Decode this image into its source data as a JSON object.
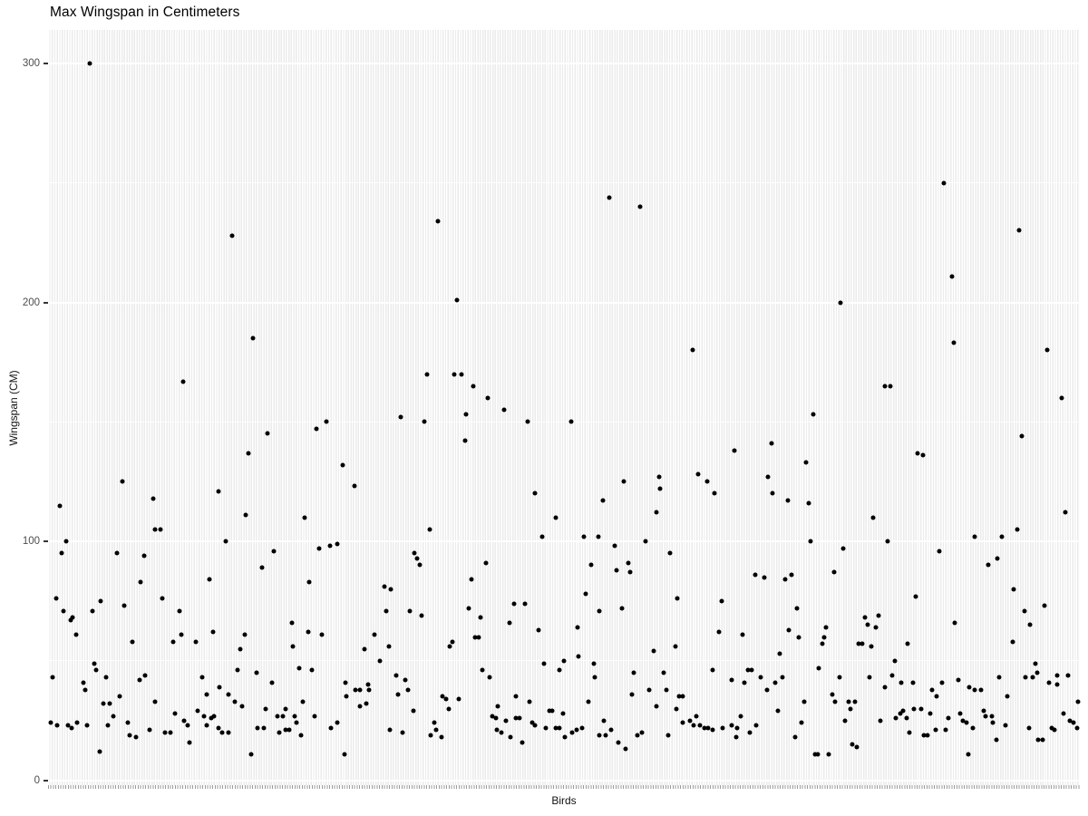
{
  "colors": {
    "page_background": "#FFFFFF",
    "panel_background": "#EBEBEB",
    "gridline": "#FFFFFF",
    "point": "#000000",
    "axis_text": "#4D4D4D",
    "title_text": "#000000",
    "tick_mark": "#333333"
  },
  "chart_data": {
    "type": "scatter",
    "title": "Max Wingspan in Centimeters",
    "xlabel": "Birds",
    "ylabel": "Wingspan (CM)",
    "x_axis_type": "categorical, one unlabeled column per bird (~400 birds)",
    "y_ticks": [
      0,
      100,
      200,
      300
    ],
    "y_minor_gridlines": [
      50,
      150,
      250
    ],
    "ylim": [
      -2,
      314
    ],
    "grid": "grey panel, vertical white stripe per category, horizontal white major/minor lines",
    "legend": "none",
    "points_format": "[x position as fraction 0-1 along Birds axis, max wingspan in cm]",
    "points": [
      [
        0.04,
        300
      ],
      [
        0.178,
        228
      ],
      [
        0.199,
        185
      ],
      [
        0.131,
        167
      ],
      [
        0.544,
        244
      ],
      [
        0.574,
        240
      ],
      [
        0.378,
        234
      ],
      [
        0.396,
        201
      ],
      [
        0.625,
        180
      ],
      [
        0.367,
        170
      ],
      [
        0.394,
        170
      ],
      [
        0.401,
        170
      ],
      [
        0.412,
        165
      ],
      [
        0.426,
        160
      ],
      [
        0.442,
        155
      ],
      [
        0.868,
        250
      ],
      [
        0.941,
        230
      ],
      [
        0.876,
        211
      ],
      [
        0.768,
        200
      ],
      [
        0.878,
        183
      ],
      [
        0.968,
        180
      ],
      [
        0.811,
        165
      ],
      [
        0.816,
        165
      ],
      [
        0.982,
        160
      ],
      [
        0.27,
        150
      ],
      [
        0.26,
        147
      ],
      [
        0.213,
        145
      ],
      [
        0.194,
        137
      ],
      [
        0.286,
        132
      ],
      [
        0.072,
        125
      ],
      [
        0.297,
        123
      ],
      [
        0.165,
        121
      ],
      [
        0.102,
        118
      ],
      [
        0.011,
        115
      ],
      [
        0.192,
        111
      ],
      [
        0.249,
        110
      ],
      [
        0.104,
        105
      ],
      [
        0.109,
        105
      ],
      [
        0.018,
        100
      ],
      [
        0.172,
        100
      ],
      [
        0.263,
        97
      ],
      [
        0.273,
        98
      ],
      [
        0.28,
        99
      ],
      [
        0.013,
        95
      ],
      [
        0.067,
        95
      ],
      [
        0.093,
        94
      ],
      [
        0.219,
        96
      ],
      [
        0.207,
        89
      ],
      [
        0.09,
        83
      ],
      [
        0.156,
        84
      ],
      [
        0.253,
        83
      ],
      [
        0.326,
        81
      ],
      [
        0.332,
        80
      ],
      [
        0.008,
        76
      ],
      [
        0.051,
        75
      ],
      [
        0.111,
        76
      ],
      [
        0.074,
        73
      ],
      [
        0.015,
        71
      ],
      [
        0.043,
        71
      ],
      [
        0.127,
        71
      ],
      [
        0.024,
        68
      ],
      [
        0.328,
        71
      ],
      [
        0.342,
        152
      ],
      [
        0.405,
        153
      ],
      [
        0.365,
        150
      ],
      [
        0.465,
        150
      ],
      [
        0.507,
        150
      ],
      [
        0.404,
        142
      ],
      [
        0.665,
        138
      ],
      [
        0.558,
        125
      ],
      [
        0.592,
        127
      ],
      [
        0.63,
        128
      ],
      [
        0.639,
        125
      ],
      [
        0.593,
        122
      ],
      [
        0.646,
        120
      ],
      [
        0.472,
        120
      ],
      [
        0.538,
        117
      ],
      [
        0.59,
        112
      ],
      [
        0.492,
        110
      ],
      [
        0.37,
        105
      ],
      [
        0.479,
        102
      ],
      [
        0.519,
        102
      ],
      [
        0.533,
        102
      ],
      [
        0.579,
        100
      ],
      [
        0.549,
        98
      ],
      [
        0.603,
        95
      ],
      [
        0.355,
        95
      ],
      [
        0.358,
        93
      ],
      [
        0.36,
        90
      ],
      [
        0.424,
        91
      ],
      [
        0.526,
        90
      ],
      [
        0.551,
        88
      ],
      [
        0.562,
        91
      ],
      [
        0.564,
        87
      ],
      [
        0.41,
        84
      ],
      [
        0.521,
        78
      ],
      [
        0.61,
        76
      ],
      [
        0.653,
        75
      ],
      [
        0.452,
        74
      ],
      [
        0.462,
        74
      ],
      [
        0.408,
        72
      ],
      [
        0.351,
        71
      ],
      [
        0.362,
        69
      ],
      [
        0.534,
        71
      ],
      [
        0.556,
        72
      ],
      [
        0.419,
        68
      ],
      [
        0.742,
        153
      ],
      [
        0.944,
        144
      ],
      [
        0.701,
        141
      ],
      [
        0.843,
        137
      ],
      [
        0.848,
        136
      ],
      [
        0.735,
        133
      ],
      [
        0.698,
        127
      ],
      [
        0.702,
        120
      ],
      [
        0.717,
        117
      ],
      [
        0.737,
        116
      ],
      [
        0.8,
        110
      ],
      [
        0.986,
        112
      ],
      [
        0.939,
        105
      ],
      [
        0.898,
        102
      ],
      [
        0.924,
        102
      ],
      [
        0.739,
        100
      ],
      [
        0.814,
        100
      ],
      [
        0.771,
        97
      ],
      [
        0.864,
        96
      ],
      [
        0.92,
        93
      ],
      [
        0.911,
        90
      ],
      [
        0.685,
        86
      ],
      [
        0.694,
        85
      ],
      [
        0.721,
        86
      ],
      [
        0.714,
        84
      ],
      [
        0.762,
        87
      ],
      [
        0.841,
        77
      ],
      [
        0.936,
        80
      ],
      [
        0.726,
        72
      ],
      [
        0.792,
        68
      ],
      [
        0.805,
        69
      ],
      [
        0.946,
        71
      ],
      [
        0.966,
        73
      ],
      [
        0.022,
        67
      ],
      [
        0.027,
        61
      ],
      [
        0.082,
        58
      ],
      [
        0.121,
        58
      ],
      [
        0.129,
        61
      ],
      [
        0.143,
        58
      ],
      [
        0.16,
        62
      ],
      [
        0.045,
        49
      ],
      [
        0.047,
        46
      ],
      [
        0.004,
        43
      ],
      [
        0.056,
        43
      ],
      [
        0.089,
        42
      ],
      [
        0.094,
        44
      ],
      [
        0.034,
        41
      ],
      [
        0.036,
        38
      ],
      [
        0.149,
        43
      ],
      [
        0.154,
        36
      ],
      [
        0.166,
        39
      ],
      [
        0.054,
        32
      ],
      [
        0.06,
        32
      ],
      [
        0.069,
        35
      ],
      [
        0.063,
        27
      ],
      [
        0.104,
        33
      ],
      [
        0.123,
        28
      ],
      [
        0.145,
        29
      ],
      [
        0.151,
        27
      ],
      [
        0.161,
        27
      ],
      [
        0.003,
        24
      ],
      [
        0.009,
        23
      ],
      [
        0.019,
        23
      ],
      [
        0.023,
        22
      ],
      [
        0.028,
        24
      ],
      [
        0.038,
        23
      ],
      [
        0.058,
        23
      ],
      [
        0.077,
        24
      ],
      [
        0.079,
        19
      ],
      [
        0.085,
        18
      ],
      [
        0.098,
        21
      ],
      [
        0.113,
        20
      ],
      [
        0.119,
        20
      ],
      [
        0.132,
        25
      ],
      [
        0.135,
        23
      ],
      [
        0.154,
        23
      ],
      [
        0.158,
        26
      ],
      [
        0.165,
        22
      ],
      [
        0.137,
        16
      ],
      [
        0.05,
        12
      ],
      [
        0.236,
        66
      ],
      [
        0.191,
        61
      ],
      [
        0.252,
        62
      ],
      [
        0.265,
        61
      ],
      [
        0.316,
        61
      ],
      [
        0.186,
        55
      ],
      [
        0.237,
        56
      ],
      [
        0.307,
        55
      ],
      [
        0.33,
        56
      ],
      [
        0.322,
        50
      ],
      [
        0.184,
        46
      ],
      [
        0.202,
        45
      ],
      [
        0.243,
        47
      ],
      [
        0.256,
        46
      ],
      [
        0.217,
        41
      ],
      [
        0.175,
        36
      ],
      [
        0.181,
        33
      ],
      [
        0.188,
        31
      ],
      [
        0.288,
        41
      ],
      [
        0.298,
        38
      ],
      [
        0.302,
        38
      ],
      [
        0.289,
        35
      ],
      [
        0.31,
        40
      ],
      [
        0.311,
        38
      ],
      [
        0.308,
        32
      ],
      [
        0.302,
        31
      ],
      [
        0.247,
        33
      ],
      [
        0.211,
        30
      ],
      [
        0.222,
        27
      ],
      [
        0.23,
        30
      ],
      [
        0.239,
        27
      ],
      [
        0.228,
        27
      ],
      [
        0.258,
        27
      ],
      [
        0.241,
        24
      ],
      [
        0.203,
        22
      ],
      [
        0.209,
        22
      ],
      [
        0.224,
        20
      ],
      [
        0.23,
        21
      ],
      [
        0.234,
        21
      ],
      [
        0.274,
        22
      ],
      [
        0.28,
        24
      ],
      [
        0.169,
        20
      ],
      [
        0.175,
        20
      ],
      [
        0.245,
        19
      ],
      [
        0.331,
        21
      ],
      [
        0.197,
        11
      ],
      [
        0.287,
        11
      ],
      [
        0.447,
        66
      ],
      [
        0.475,
        63
      ],
      [
        0.414,
        60
      ],
      [
        0.417,
        60
      ],
      [
        0.392,
        58
      ],
      [
        0.389,
        56
      ],
      [
        0.421,
        46
      ],
      [
        0.428,
        43
      ],
      [
        0.337,
        44
      ],
      [
        0.346,
        42
      ],
      [
        0.349,
        38
      ],
      [
        0.339,
        36
      ],
      [
        0.481,
        49
      ],
      [
        0.496,
        46
      ],
      [
        0.382,
        35
      ],
      [
        0.386,
        34
      ],
      [
        0.398,
        34
      ],
      [
        0.388,
        30
      ],
      [
        0.354,
        29
      ],
      [
        0.453,
        35
      ],
      [
        0.436,
        31
      ],
      [
        0.467,
        33
      ],
      [
        0.431,
        27
      ],
      [
        0.434,
        26
      ],
      [
        0.444,
        25
      ],
      [
        0.453,
        26
      ],
      [
        0.457,
        26
      ],
      [
        0.374,
        24
      ],
      [
        0.344,
        20
      ],
      [
        0.371,
        19
      ],
      [
        0.376,
        21
      ],
      [
        0.381,
        18
      ],
      [
        0.435,
        21
      ],
      [
        0.439,
        20
      ],
      [
        0.448,
        18
      ],
      [
        0.469,
        24
      ],
      [
        0.472,
        23
      ],
      [
        0.46,
        16
      ],
      [
        0.486,
        29
      ],
      [
        0.489,
        29
      ],
      [
        0.496,
        22
      ],
      [
        0.492,
        22
      ],
      [
        0.482,
        22
      ],
      [
        0.499,
        28
      ],
      [
        0.513,
        64
      ],
      [
        0.65,
        62
      ],
      [
        0.608,
        56
      ],
      [
        0.587,
        54
      ],
      [
        0.514,
        52
      ],
      [
        0.5,
        50
      ],
      [
        0.529,
        49
      ],
      [
        0.568,
        45
      ],
      [
        0.597,
        45
      ],
      [
        0.644,
        46
      ],
      [
        0.53,
        43
      ],
      [
        0.663,
        42
      ],
      [
        0.583,
        38
      ],
      [
        0.599,
        38
      ],
      [
        0.566,
        36
      ],
      [
        0.612,
        35
      ],
      [
        0.615,
        35
      ],
      [
        0.524,
        33
      ],
      [
        0.59,
        31
      ],
      [
        0.609,
        30
      ],
      [
        0.615,
        24
      ],
      [
        0.622,
        25
      ],
      [
        0.628,
        27
      ],
      [
        0.539,
        25
      ],
      [
        0.508,
        20
      ],
      [
        0.512,
        21
      ],
      [
        0.501,
        18
      ],
      [
        0.518,
        22
      ],
      [
        0.534,
        19
      ],
      [
        0.54,
        19
      ],
      [
        0.546,
        21
      ],
      [
        0.553,
        16
      ],
      [
        0.56,
        13
      ],
      [
        0.571,
        19
      ],
      [
        0.576,
        20
      ],
      [
        0.601,
        19
      ],
      [
        0.626,
        23
      ],
      [
        0.632,
        23
      ],
      [
        0.636,
        22
      ],
      [
        0.64,
        22
      ],
      [
        0.644,
        21
      ],
      [
        0.654,
        22
      ],
      [
        0.663,
        23
      ],
      [
        0.667,
        18
      ],
      [
        0.673,
        61
      ],
      [
        0.718,
        63
      ],
      [
        0.728,
        60
      ],
      [
        0.754,
        64
      ],
      [
        0.752,
        60
      ],
      [
        0.75,
        57
      ],
      [
        0.794,
        65
      ],
      [
        0.802,
        64
      ],
      [
        0.786,
        57
      ],
      [
        0.789,
        57
      ],
      [
        0.798,
        56
      ],
      [
        0.833,
        57
      ],
      [
        0.709,
        53
      ],
      [
        0.821,
        50
      ],
      [
        0.747,
        47
      ],
      [
        0.678,
        46
      ],
      [
        0.682,
        46
      ],
      [
        0.691,
        43
      ],
      [
        0.675,
        41
      ],
      [
        0.712,
        43
      ],
      [
        0.705,
        41
      ],
      [
        0.697,
        38
      ],
      [
        0.767,
        43
      ],
      [
        0.796,
        43
      ],
      [
        0.818,
        44
      ],
      [
        0.827,
        41
      ],
      [
        0.811,
        39
      ],
      [
        0.76,
        36
      ],
      [
        0.763,
        33
      ],
      [
        0.776,
        33
      ],
      [
        0.782,
        33
      ],
      [
        0.778,
        30
      ],
      [
        0.733,
        33
      ],
      [
        0.707,
        29
      ],
      [
        0.671,
        27
      ],
      [
        0.668,
        22
      ],
      [
        0.686,
        23
      ],
      [
        0.68,
        20
      ],
      [
        0.772,
        25
      ],
      [
        0.807,
        25
      ],
      [
        0.822,
        26
      ],
      [
        0.826,
        28
      ],
      [
        0.829,
        29
      ],
      [
        0.832,
        26
      ],
      [
        0.724,
        18
      ],
      [
        0.73,
        24
      ],
      [
        0.779,
        15
      ],
      [
        0.784,
        14
      ],
      [
        0.743,
        11
      ],
      [
        0.746,
        11
      ],
      [
        0.757,
        11
      ],
      [
        0.879,
        66
      ],
      [
        0.952,
        65
      ],
      [
        0.935,
        58
      ],
      [
        0.957,
        49
      ],
      [
        0.959,
        45
      ],
      [
        0.947,
        43
      ],
      [
        0.954,
        43
      ],
      [
        0.978,
        44
      ],
      [
        0.989,
        44
      ],
      [
        0.97,
        41
      ],
      [
        0.978,
        40
      ],
      [
        0.922,
        43
      ],
      [
        0.838,
        41
      ],
      [
        0.866,
        41
      ],
      [
        0.882,
        42
      ],
      [
        0.857,
        38
      ],
      [
        0.861,
        35
      ],
      [
        0.893,
        39
      ],
      [
        0.898,
        38
      ],
      [
        0.904,
        38
      ],
      [
        0.93,
        35
      ],
      [
        0.839,
        30
      ],
      [
        0.846,
        30
      ],
      [
        0.855,
        28
      ],
      [
        0.873,
        26
      ],
      [
        0.884,
        28
      ],
      [
        0.887,
        25
      ],
      [
        0.89,
        24
      ],
      [
        0.907,
        29
      ],
      [
        0.909,
        27
      ],
      [
        0.915,
        27
      ],
      [
        0.916,
        24
      ],
      [
        0.896,
        22
      ],
      [
        0.87,
        21
      ],
      [
        0.86,
        21
      ],
      [
        0.849,
        19
      ],
      [
        0.852,
        19
      ],
      [
        0.928,
        23
      ],
      [
        0.919,
        17
      ],
      [
        0.951,
        22
      ],
      [
        0.96,
        17
      ],
      [
        0.964,
        17
      ],
      [
        0.973,
        22
      ],
      [
        0.975,
        21
      ],
      [
        0.99,
        25
      ],
      [
        0.994,
        24
      ],
      [
        0.998,
        33
      ],
      [
        0.997,
        22
      ],
      [
        0.984,
        28
      ],
      [
        0.892,
        11
      ],
      [
        0.835,
        20
      ]
    ]
  }
}
